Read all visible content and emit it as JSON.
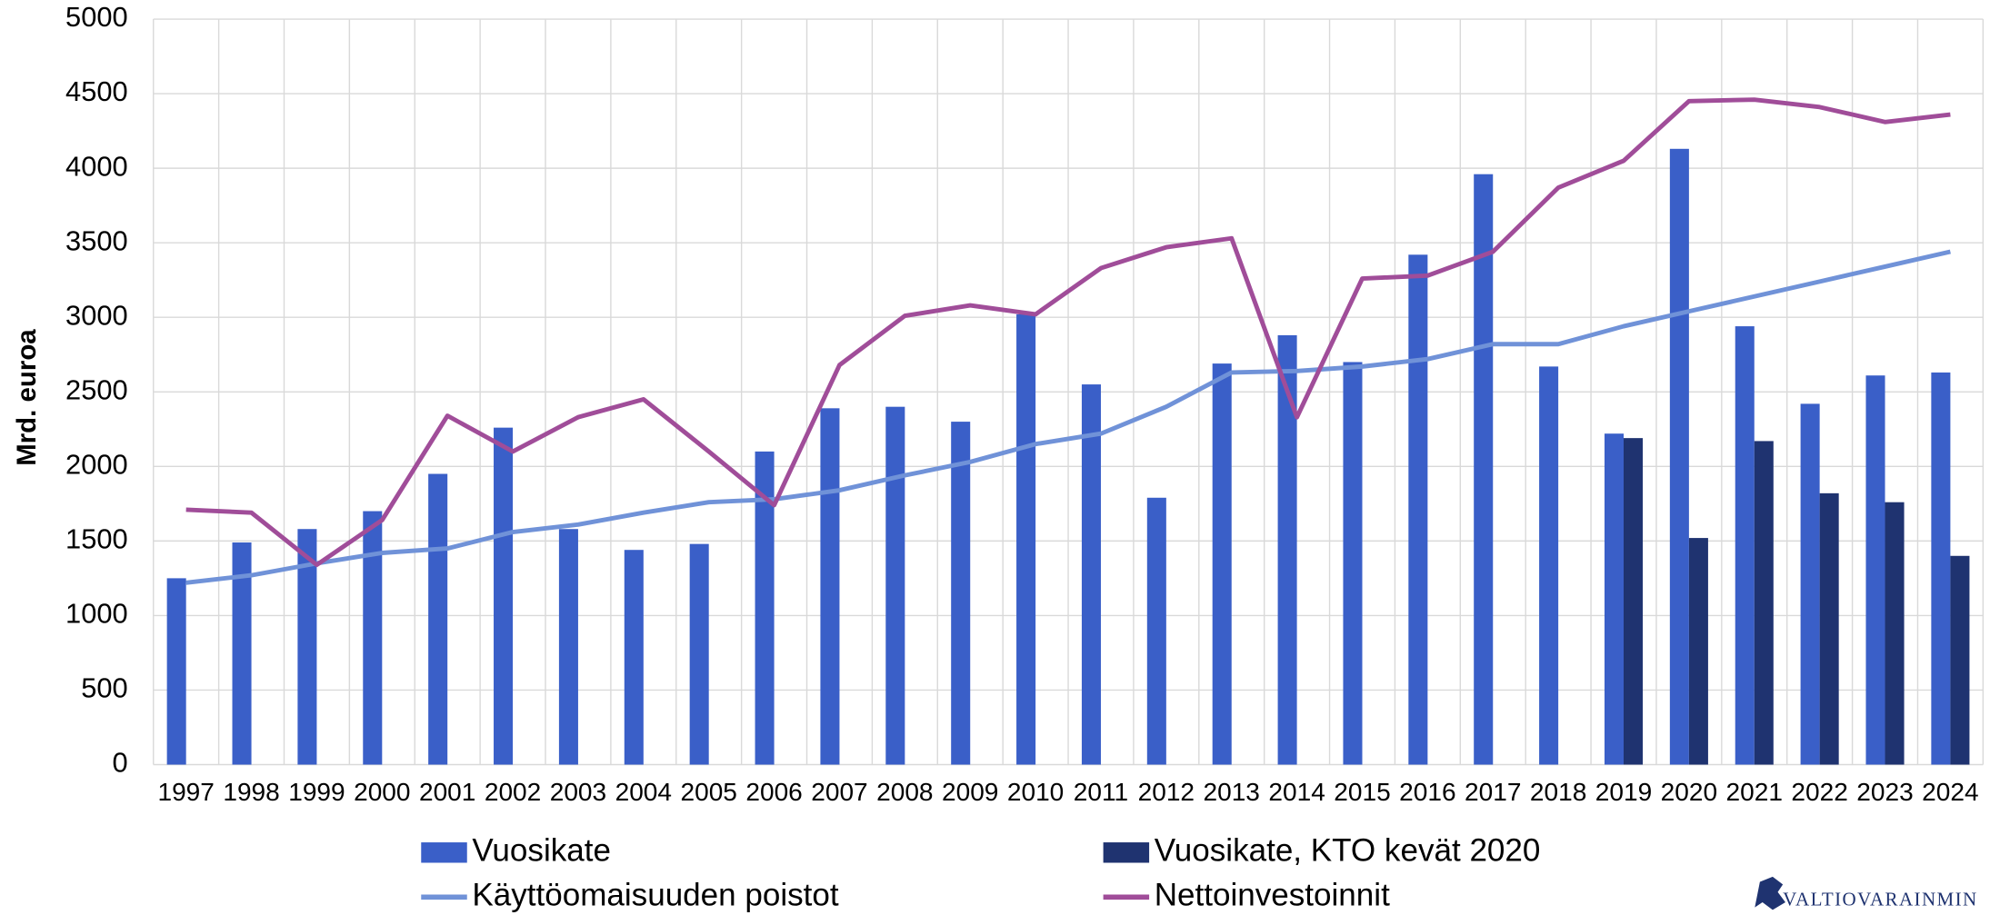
{
  "chart_data": {
    "type": "bar_line",
    "y_label": "Mrd. euroa",
    "categories": [
      "1997",
      "1998",
      "1999",
      "2000",
      "2001",
      "2002",
      "2003",
      "2004",
      "2005",
      "2006",
      "2007",
      "2008",
      "2009",
      "2010",
      "2011",
      "2012",
      "2013",
      "2014",
      "2015",
      "2016",
      "2017",
      "2018",
      "2019",
      "2020",
      "2021",
      "2022",
      "2023",
      "2024"
    ],
    "ylim": [
      0,
      5000
    ],
    "yticks": [
      0,
      500,
      1000,
      1500,
      2000,
      2500,
      3000,
      3500,
      4000,
      4500,
      5000
    ],
    "grid": true,
    "legend": "bottom",
    "series": [
      {
        "name": "Vuosikate",
        "kind": "bar",
        "color": "#3a5fc8",
        "values": [
          1250,
          1490,
          1580,
          1700,
          1950,
          2260,
          1580,
          1440,
          1480,
          2100,
          2390,
          2400,
          2300,
          3020,
          2550,
          1790,
          2690,
          2880,
          2700,
          3420,
          3960,
          2670,
          2220,
          4130,
          2940,
          2420,
          2610,
          2630
        ]
      },
      {
        "name": "Vuosikate, KTO kevät 2020",
        "kind": "bar",
        "color": "#1f3370",
        "values": [
          null,
          null,
          null,
          null,
          null,
          null,
          null,
          null,
          null,
          null,
          null,
          null,
          null,
          null,
          null,
          null,
          null,
          null,
          null,
          null,
          null,
          null,
          2190,
          1520,
          2170,
          1820,
          1760,
          1400
        ]
      },
      {
        "name": "Käyttöomaisuuden poistot",
        "kind": "line",
        "color": "#7092d8",
        "values": [
          1220,
          1270,
          1350,
          1420,
          1450,
          1560,
          1610,
          1690,
          1760,
          1780,
          1840,
          1940,
          2030,
          2150,
          2220,
          2400,
          2630,
          2640,
          2670,
          2720,
          2820,
          2820,
          2940,
          3040,
          3140,
          3240,
          3340,
          3440
        ]
      },
      {
        "name": "Nettoinvestoinnit",
        "kind": "line",
        "color": "#a04d99",
        "values": [
          1710,
          1690,
          1340,
          1640,
          2340,
          2100,
          2330,
          2450,
          2100,
          1740,
          2680,
          3010,
          3080,
          3020,
          3330,
          3470,
          3530,
          2330,
          3260,
          3280,
          3440,
          3870,
          4050,
          4450,
          4460,
          4410,
          4310,
          4360
        ]
      }
    ]
  },
  "logo_text": "VALTIOVARAINMIN"
}
